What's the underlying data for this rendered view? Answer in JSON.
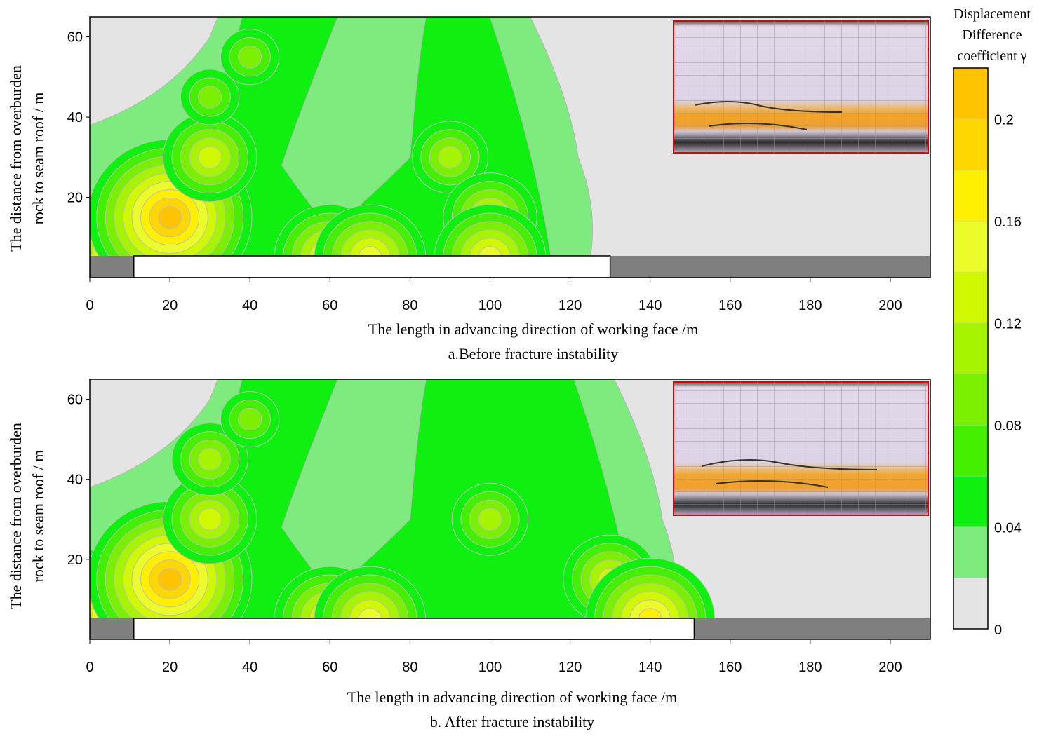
{
  "chart_data": [
    {
      "type": "contour",
      "panel": "a",
      "caption": "a.Before fracture instability",
      "xlabel": "The length in advancing direction of working face /m",
      "ylabel_line1": "The distance from overburden",
      "ylabel_line2": "rock to seam roof / m",
      "xlim": [
        0,
        210
      ],
      "ylim": [
        0,
        65
      ],
      "xticks": [
        "0",
        "20",
        "40",
        "60",
        "80",
        "100",
        "120",
        "140",
        "160",
        "180",
        "200"
      ],
      "yticks": [
        "20",
        "40",
        "60"
      ],
      "mined_goaf_range_m": [
        11,
        130
      ],
      "peaks": [
        {
          "x": 10,
          "y": 5,
          "gamma": 0.18
        },
        {
          "x": 20,
          "y": 15,
          "gamma": 0.2
        },
        {
          "x": 30,
          "y": 30,
          "gamma": 0.12
        },
        {
          "x": 30,
          "y": 45,
          "gamma": 0.08
        },
        {
          "x": 40,
          "y": 55,
          "gamma": 0.08
        },
        {
          "x": 60,
          "y": 5,
          "gamma": 0.14
        },
        {
          "x": 70,
          "y": 5,
          "gamma": 0.14
        },
        {
          "x": 90,
          "y": 30,
          "gamma": 0.1
        },
        {
          "x": 100,
          "y": 15,
          "gamma": 0.12
        },
        {
          "x": 100,
          "y": 5,
          "gamma": 0.14
        }
      ]
    },
    {
      "type": "contour",
      "panel": "b",
      "caption": "b. After fracture instability",
      "xlabel": "The length in advancing direction of working face /m",
      "ylabel_line1": "The distance from overburden",
      "ylabel_line2": "rock to seam roof / m",
      "xlim": [
        0,
        210
      ],
      "ylim": [
        0,
        65
      ],
      "xticks": [
        "0",
        "20",
        "40",
        "60",
        "80",
        "100",
        "120",
        "140",
        "160",
        "180",
        "200"
      ],
      "yticks": [
        "20",
        "40",
        "60"
      ],
      "mined_goaf_range_m": [
        11,
        151
      ],
      "peaks": [
        {
          "x": 10,
          "y": 5,
          "gamma": 0.2
        },
        {
          "x": 20,
          "y": 15,
          "gamma": 0.2
        },
        {
          "x": 30,
          "y": 30,
          "gamma": 0.12
        },
        {
          "x": 30,
          "y": 45,
          "gamma": 0.1
        },
        {
          "x": 40,
          "y": 55,
          "gamma": 0.08
        },
        {
          "x": 60,
          "y": 5,
          "gamma": 0.14
        },
        {
          "x": 70,
          "y": 5,
          "gamma": 0.14
        },
        {
          "x": 100,
          "y": 30,
          "gamma": 0.1
        },
        {
          "x": 130,
          "y": 15,
          "gamma": 0.12
        },
        {
          "x": 140,
          "y": 5,
          "gamma": 0.16
        }
      ]
    }
  ],
  "colorbar": {
    "title_lines": [
      "Displacement",
      "Difference",
      "coefficient γ"
    ],
    "tick_labels": [
      "0",
      "0.04",
      "0.08",
      "0.12",
      "0.16",
      "0.2"
    ],
    "tick_values": [
      0,
      0.04,
      0.08,
      0.12,
      0.16,
      0.2
    ],
    "levels": [
      0,
      0.02,
      0.04,
      0.06,
      0.08,
      0.1,
      0.12,
      0.14,
      0.16,
      0.18,
      0.2,
      0.22
    ],
    "colors": [
      "#e4e4e4",
      "#7eeb7e",
      "#10f010",
      "#44f000",
      "#7af000",
      "#a6f400",
      "#d0f800",
      "#ecfb2a",
      "#ffef00",
      "#ffd700",
      "#ffc400"
    ]
  }
}
